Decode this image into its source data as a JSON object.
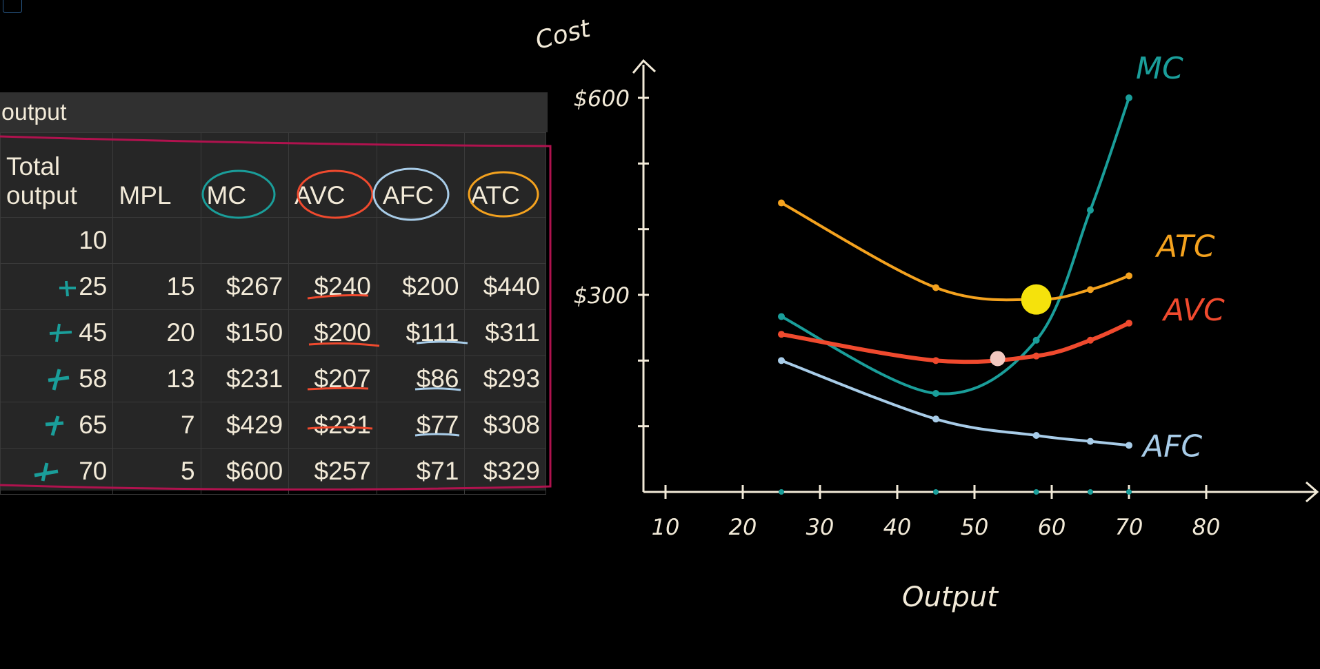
{
  "table": {
    "caption": "output",
    "headers": [
      "Total\noutput",
      "MPL",
      "MC",
      "AVC",
      "AFC",
      "ATC"
    ],
    "rows": [
      [
        "10",
        "",
        "",
        "",
        "",
        ""
      ],
      [
        "25",
        "15",
        "$267",
        "$240",
        "$200",
        "$440"
      ],
      [
        "45",
        "20",
        "$150",
        "$200",
        "$111",
        "$311"
      ],
      [
        "58",
        "13",
        "$231",
        "$207",
        "$86",
        "$293"
      ],
      [
        "65",
        "7",
        "$429",
        "$231",
        "$77",
        "$308"
      ],
      [
        "70",
        "5",
        "$600",
        "$257",
        "$71",
        "$329"
      ]
    ]
  },
  "colors": {
    "mc": "#1a9e9a",
    "avc": "#f04a2e",
    "afc": "#a8cce8",
    "atc": "#f4a21e",
    "highlight": "#f5e20c",
    "box": "#b0124e",
    "ink": "#f2ead8"
  },
  "chart_data": {
    "type": "line",
    "title": "",
    "xlabel": "Output",
    "ylabel": "Cost",
    "xlim": [
      0,
      85
    ],
    "ylim": [
      0,
      650
    ],
    "x_ticks": [
      10,
      20,
      30,
      40,
      50,
      60,
      70,
      80
    ],
    "y_tick_labels": [
      {
        "value": 300,
        "label": "$300"
      },
      {
        "value": 600,
        "label": "$600"
      }
    ],
    "series": [
      {
        "name": "MC",
        "x": [
          25,
          45,
          58,
          65,
          70
        ],
        "values": [
          267,
          150,
          231,
          429,
          600
        ]
      },
      {
        "name": "AVC",
        "x": [
          25,
          45,
          58,
          65,
          70
        ],
        "values": [
          240,
          200,
          207,
          231,
          257
        ]
      },
      {
        "name": "AFC",
        "x": [
          25,
          45,
          58,
          65,
          70
        ],
        "values": [
          200,
          111,
          86,
          77,
          71
        ]
      },
      {
        "name": "ATC",
        "x": [
          25,
          45,
          58,
          65,
          70
        ],
        "values": [
          440,
          311,
          293,
          308,
          329
        ]
      }
    ],
    "highlight_points": [
      {
        "x": 58,
        "y": 293
      },
      {
        "x": 53,
        "y": 203
      }
    ]
  }
}
